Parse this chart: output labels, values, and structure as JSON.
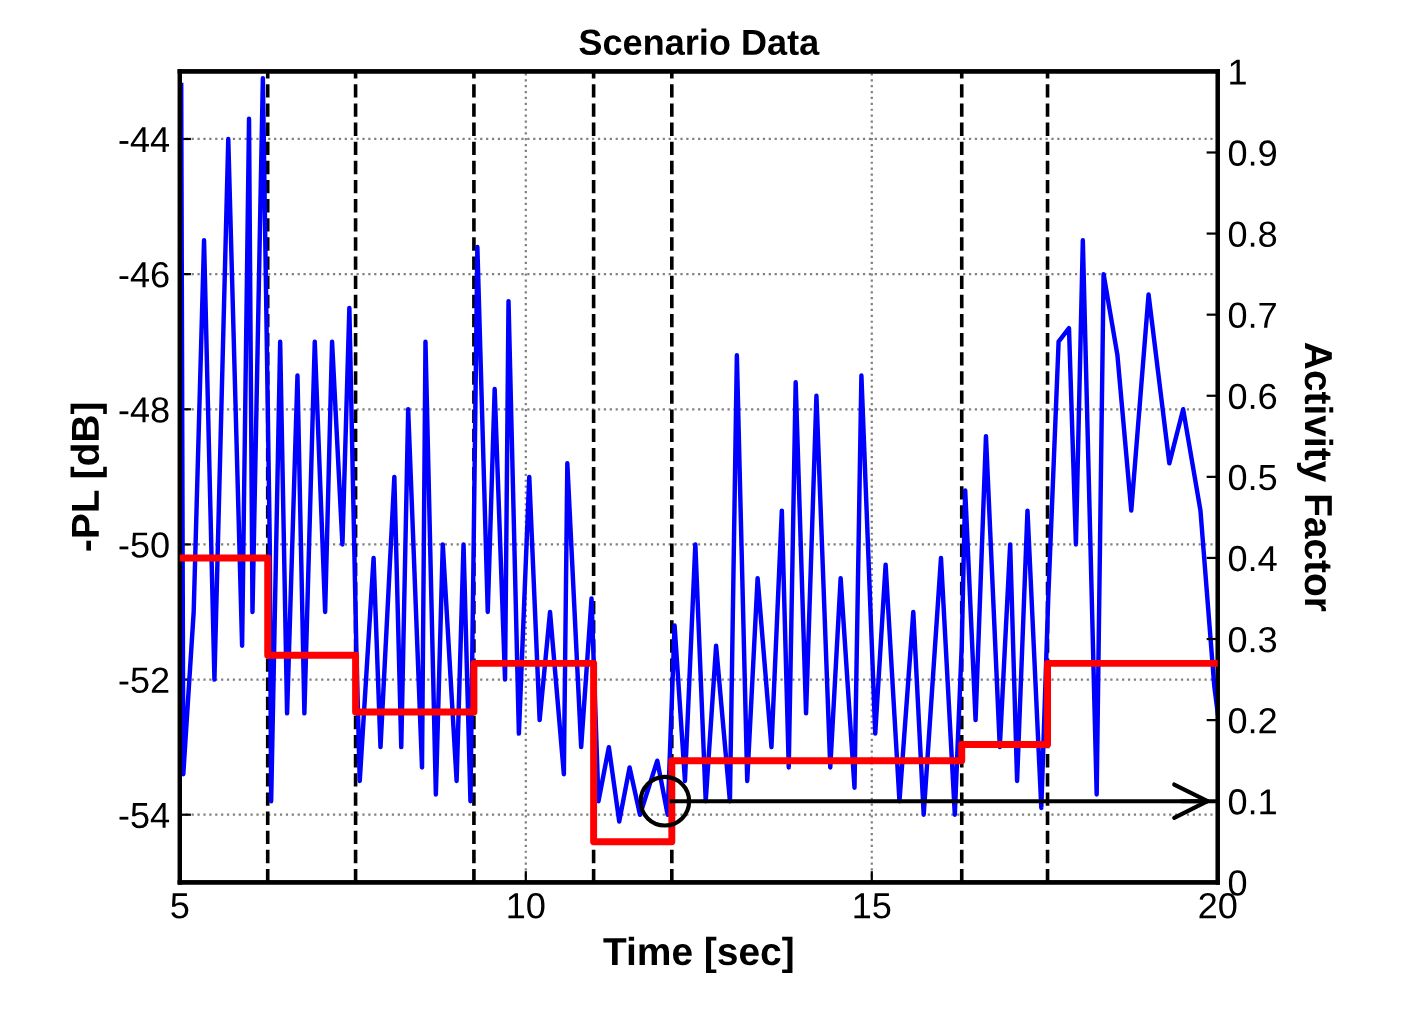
{
  "chart_data": {
    "type": "line",
    "title": "Scenario Data",
    "xlabel": "Time [sec]",
    "ylabel": "-PL [dB]",
    "y2label": "Activity Factor",
    "xlim": [
      5,
      20
    ],
    "xticks": [
      5,
      10,
      15,
      20
    ],
    "ylim": [
      -55,
      -43
    ],
    "yticks": [
      -54,
      -52,
      -50,
      -48,
      -46,
      -44
    ],
    "y2lim": [
      0,
      1
    ],
    "y2ticks": [
      0,
      0.1,
      0.2,
      0.3,
      0.4,
      0.5,
      0.6,
      0.7,
      0.8,
      0.9,
      1
    ],
    "grid": true,
    "marker": "none",
    "line_style": "solid",
    "series": [
      {
        "color": "#0000ff",
        "x": [
          5.02,
          5.05,
          5.2,
          5.35,
          5.5,
          5.7,
          5.9,
          6.0,
          6.05,
          6.2,
          6.3,
          6.32,
          6.45,
          6.55,
          6.7,
          6.8,
          6.95,
          7.1,
          7.2,
          7.35,
          7.45,
          7.55,
          7.6,
          7.8,
          7.9,
          8.1,
          8.2,
          8.3,
          8.5,
          8.55,
          8.7,
          8.8,
          9.0,
          9.1,
          9.2,
          9.3,
          9.45,
          9.55,
          9.7,
          9.75,
          9.9,
          10.05,
          10.2,
          10.35,
          10.55,
          10.6,
          10.8,
          10.95,
          11.05,
          11.2,
          11.35,
          11.5,
          11.65,
          11.9,
          12.05,
          12.15,
          12.3,
          12.45,
          12.6,
          12.75,
          12.95,
          13.05,
          13.2,
          13.35,
          13.55,
          13.7,
          13.8,
          13.9,
          14.05,
          14.2,
          14.4,
          14.55,
          14.75,
          14.85,
          15.05,
          15.2,
          15.4,
          15.6,
          15.75,
          16.0,
          16.2,
          16.3,
          16.35,
          16.5,
          16.65,
          16.85,
          17.0,
          17.1,
          17.25,
          17.45,
          17.55,
          17.7,
          17.85,
          17.95,
          18.05,
          18.25,
          18.35,
          18.55,
          18.75,
          19.0,
          19.3,
          19.5,
          19.75,
          19.95,
          20.0
        ],
        "values": [
          -43.2,
          -53.4,
          -51,
          -45.5,
          -52,
          -44,
          -51.5,
          -43.7,
          -51,
          -43.1,
          -50,
          -53.8,
          -47,
          -52.5,
          -47.5,
          -52.5,
          -47,
          -51,
          -47,
          -50,
          -46.5,
          -51.5,
          -53.5,
          -50.2,
          -53,
          -49,
          -53,
          -48,
          -53.3,
          -47,
          -53.7,
          -50,
          -53.5,
          -50,
          -53.8,
          -45.6,
          -51,
          -47.7,
          -52,
          -46.4,
          -52.8,
          -49,
          -52.6,
          -51,
          -53.4,
          -48.8,
          -53,
          -50.8,
          -53.8,
          -53,
          -54.1,
          -53.3,
          -54,
          -53.2,
          -54,
          -51.2,
          -53.5,
          -50,
          -53.8,
          -51.5,
          -53.8,
          -47.2,
          -53.5,
          -50.5,
          -53,
          -49.5,
          -53.3,
          -47.6,
          -52.5,
          -47.8,
          -53.3,
          -50.5,
          -53.6,
          -47.5,
          -52.8,
          -50.3,
          -53.8,
          -51,
          -54,
          -50.2,
          -54,
          -51.5,
          -49.2,
          -52.6,
          -48.4,
          -53,
          -50,
          -53.5,
          -49.5,
          -53.9,
          -50.8,
          -47,
          -46.8,
          -50,
          -45.5,
          -53.7,
          -46,
          -47.2,
          -49.5,
          -46.3,
          -48.8,
          -48,
          -49.5,
          -52.1,
          -52.5
        ]
      },
      {
        "type": "step",
        "axis": "y2",
        "color": "#ff0000",
        "x": [
          5,
          6.27,
          7.54,
          9.25,
          10.98,
          12.11,
          16.3,
          17.54,
          20
        ],
        "values": [
          0.4,
          0.28,
          0.21,
          0.27,
          0.05,
          0.15,
          0.17,
          0.27,
          0.27
        ]
      },
      {
        "type": "line",
        "axis": "y2",
        "color": "#000000",
        "x": [
          12.11,
          20
        ],
        "values": [
          0.1,
          0.1
        ]
      }
    ],
    "ref_lines": [
      {
        "axis": "x",
        "value": 6.27,
        "color": "#000000",
        "line_style": "dashed"
      },
      {
        "axis": "x",
        "value": 7.54,
        "color": "#000000",
        "line_style": "dashed"
      },
      {
        "axis": "x",
        "value": 9.25,
        "color": "#000000",
        "line_style": "dashed"
      },
      {
        "axis": "x",
        "value": 10.98,
        "color": "#000000",
        "line_style": "dashed"
      },
      {
        "axis": "x",
        "value": 12.11,
        "color": "#000000",
        "line_style": "dashed"
      },
      {
        "axis": "x",
        "value": 16.3,
        "color": "#000000",
        "line_style": "dashed"
      },
      {
        "axis": "x",
        "value": 17.54,
        "color": "#000000",
        "line_style": "dashed"
      }
    ]
  }
}
